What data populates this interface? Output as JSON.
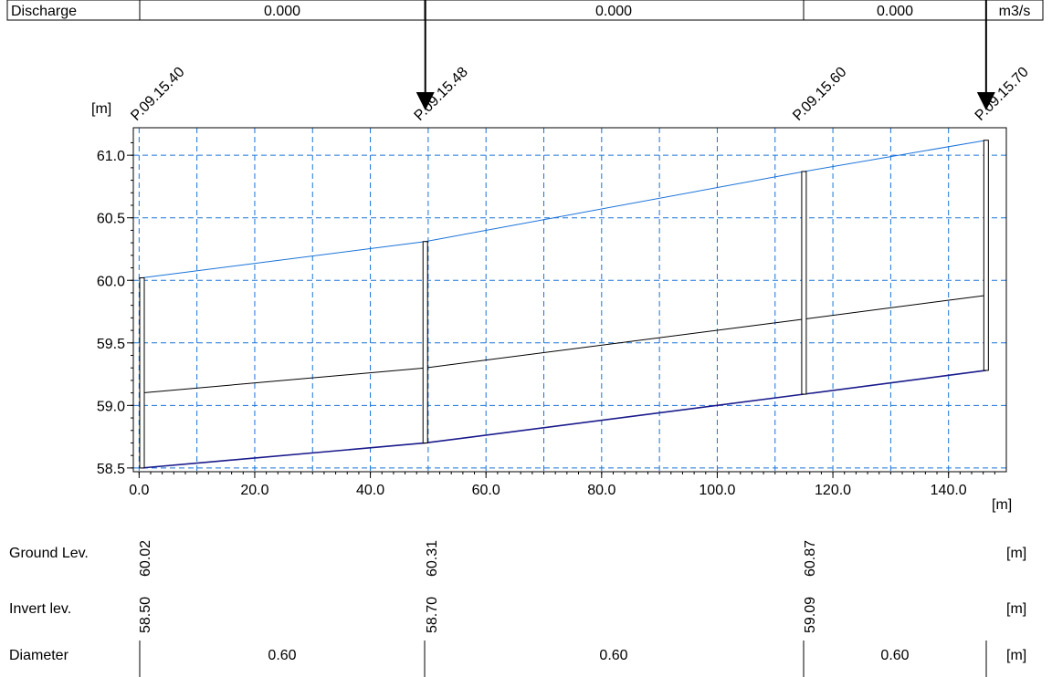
{
  "discharge": {
    "label": "Discharge",
    "values": [
      "0.000",
      "0.000",
      "0.000"
    ],
    "unit": "m3/s"
  },
  "chart_data": {
    "type": "line",
    "ylabel": "[m]",
    "xlabel": "[m]",
    "xlim": [
      -1,
      150
    ],
    "ylim": [
      58.47,
      61.22
    ],
    "x_ticks": [
      0,
      20,
      40,
      60,
      80,
      100,
      120,
      140
    ],
    "x_tick_labels": [
      "0.0",
      "20.0",
      "40.0",
      "60.0",
      "80.0",
      "100.0",
      "120.0",
      "140.0"
    ],
    "y_ticks": [
      58.5,
      59.0,
      59.5,
      60.0,
      60.5,
      61.0
    ],
    "y_tick_labels": [
      "58.5",
      "59.0",
      "59.5",
      "60.0",
      "60.5",
      "61.0"
    ],
    "grid": true,
    "nodes": [
      {
        "name": "P.09.15.40",
        "x": 0.5,
        "ground": 60.02,
        "invert": 58.5
      },
      {
        "name": "P.09.15.48",
        "x": 49.5,
        "ground": 60.31,
        "invert": 58.7
      },
      {
        "name": "P.09.15.60",
        "x": 115,
        "ground": 60.87,
        "invert": 59.09
      },
      {
        "name": "P.09.15.70",
        "x": 146.5,
        "ground": 61.12,
        "invert": 59.28
      }
    ],
    "series": [
      {
        "color": "#1a73d9",
        "x": [
          0.5,
          49.5,
          115,
          146.5
        ],
        "y": [
          60.02,
          60.31,
          60.87,
          61.12
        ]
      },
      {
        "color": "#000000",
        "x": [
          0.5,
          49.5,
          115,
          146.5
        ],
        "y": [
          59.1,
          59.3,
          59.69,
          59.88
        ]
      },
      {
        "color": "#1a1a8c",
        "x": [
          0.5,
          49.5,
          115,
          146.5
        ],
        "y": [
          58.5,
          58.7,
          59.09,
          59.28
        ]
      }
    ],
    "arrows_at": [
      49.5,
      146.5
    ]
  },
  "profile_table": {
    "ground": {
      "label": "Ground Lev.",
      "unit": "[m]",
      "values": [
        "60.02",
        "60.31",
        "60.87"
      ]
    },
    "invert": {
      "label": "Invert lev.",
      "unit": "[m]",
      "values": [
        "58.50",
        "58.70",
        "59.09"
      ]
    },
    "diameter": {
      "label": "Diameter",
      "unit": "[m]",
      "values": [
        "0.60",
        "0.60",
        "0.60"
      ]
    }
  },
  "colors": {
    "grid": "#1a73d9",
    "water": "#1a73d9",
    "pipe_bottom": "#1a1a8c"
  }
}
